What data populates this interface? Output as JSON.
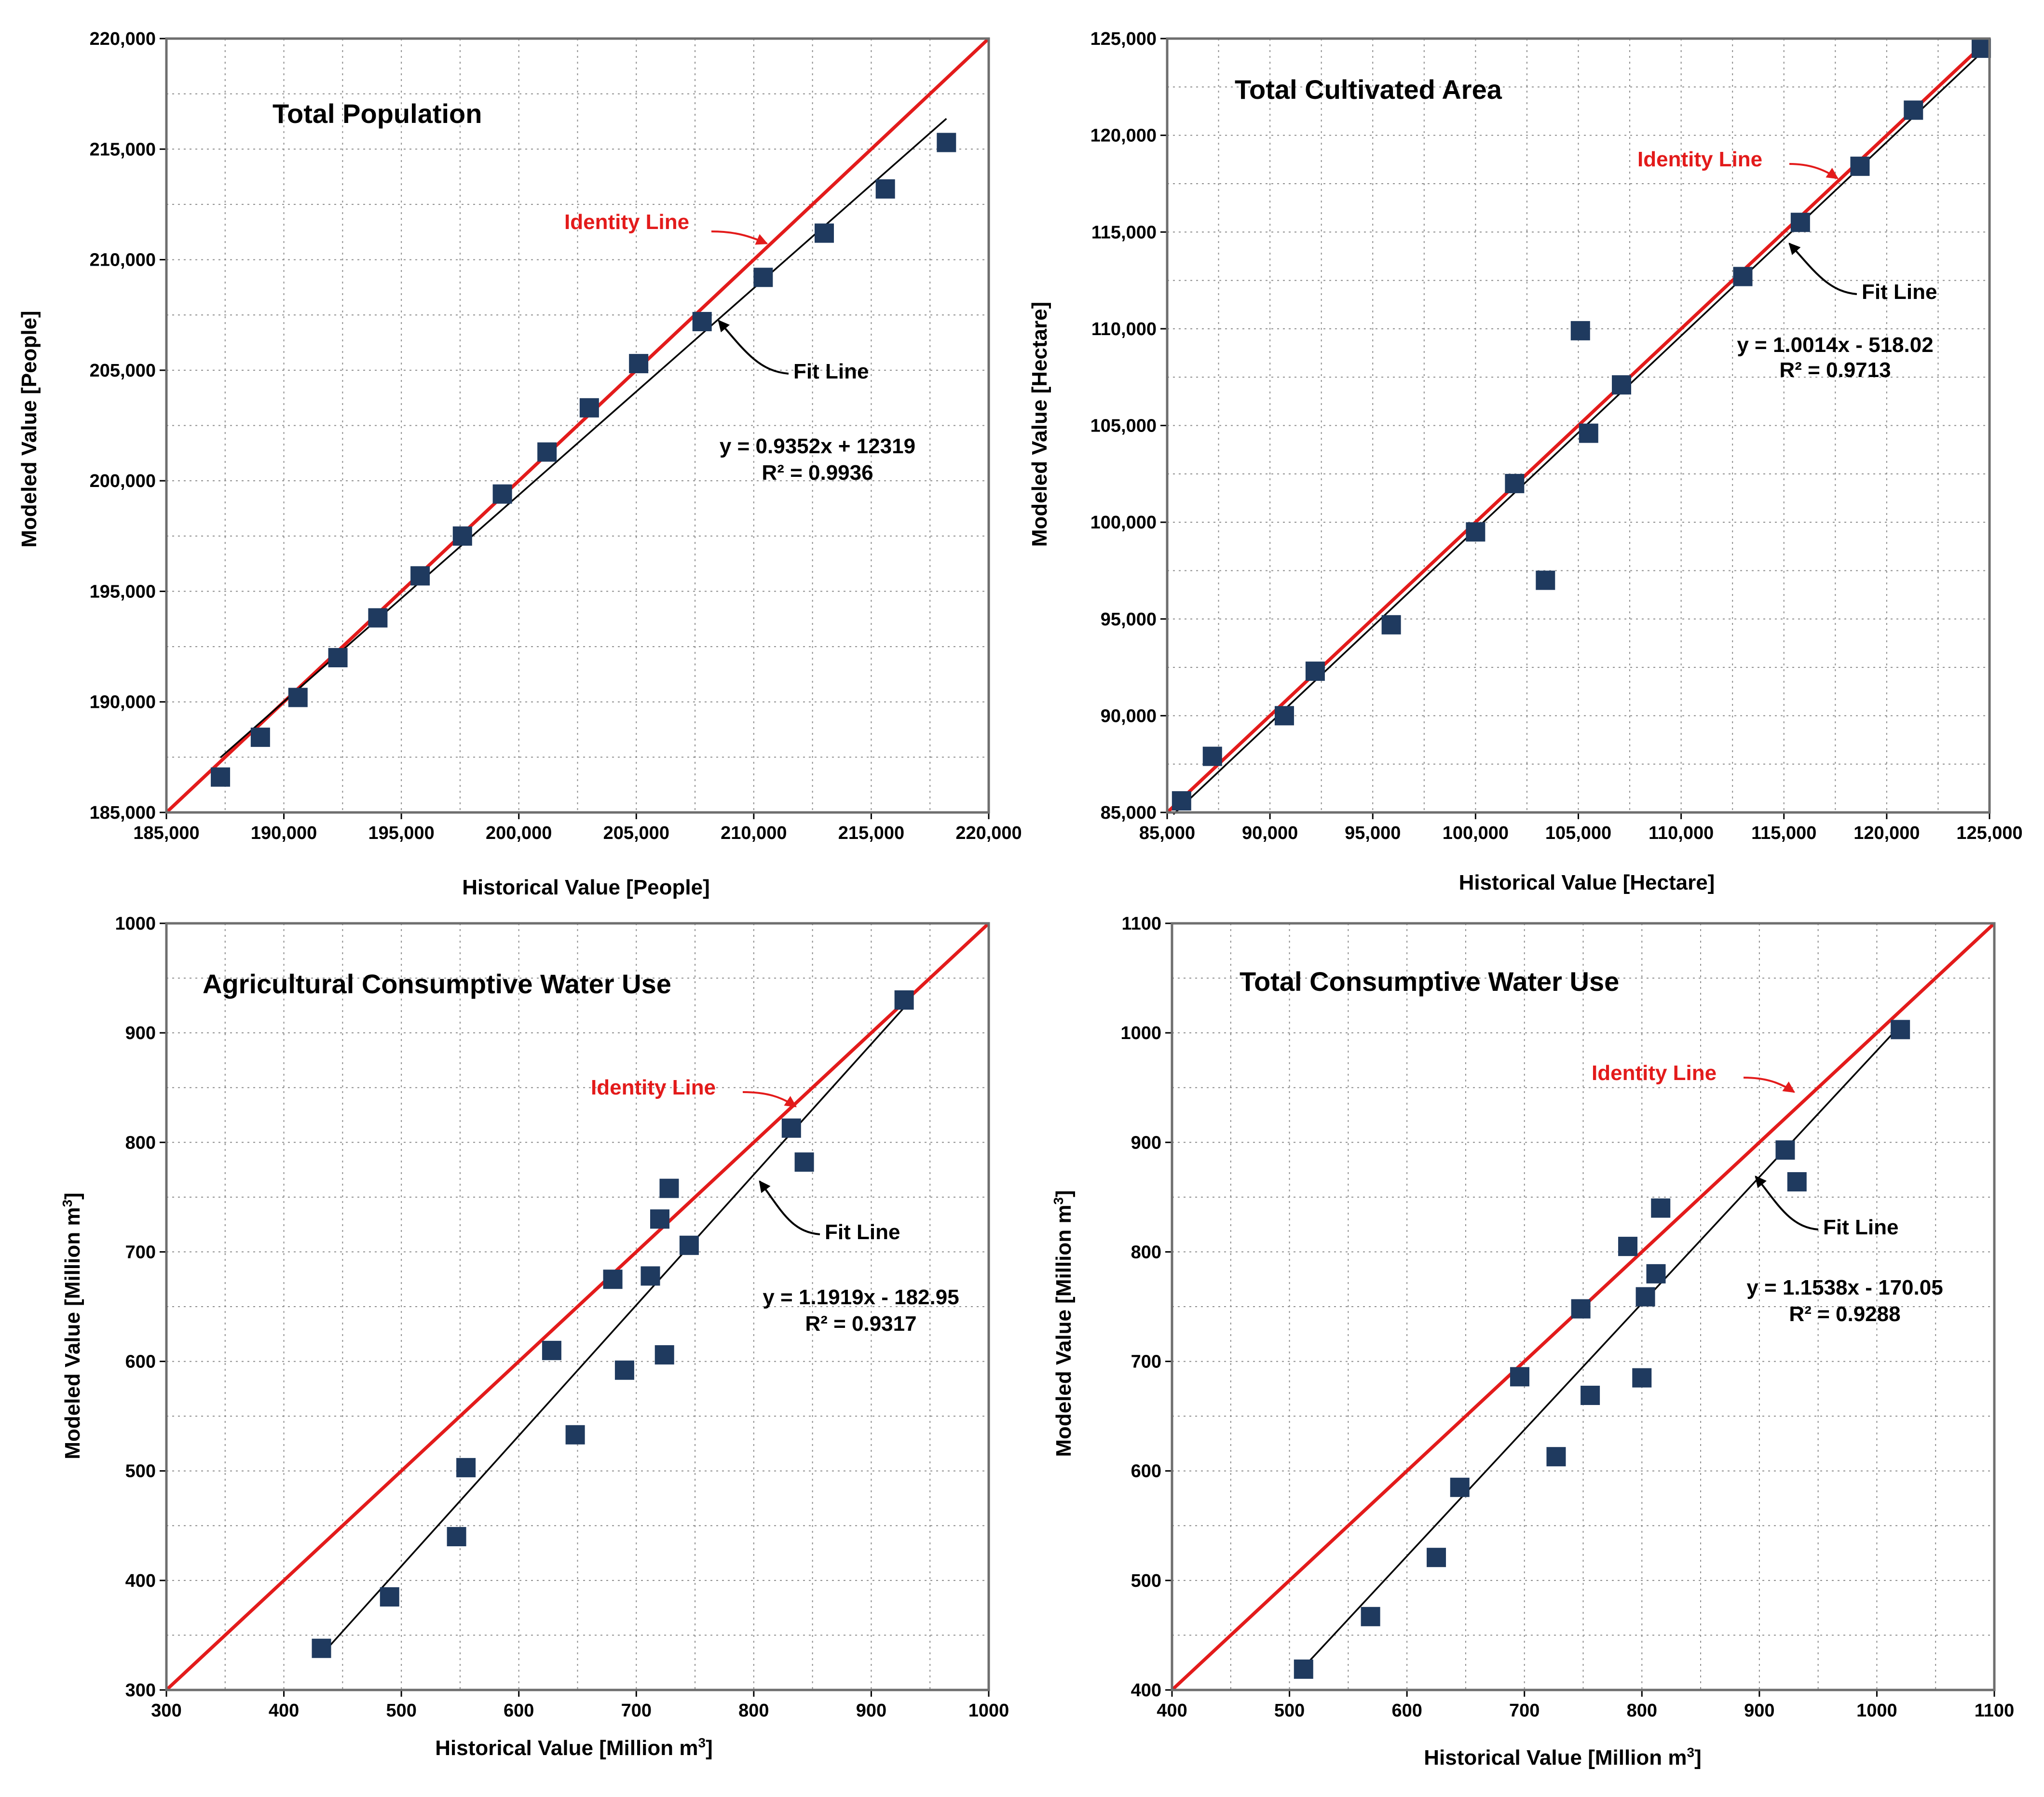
{
  "chart_data": [
    {
      "type": "scatter",
      "title": "Total Population",
      "xlabel": "Historical Value [People]",
      "ylabel": "Modeled Value [People]",
      "xlim": [
        185000,
        220000
      ],
      "ylim": [
        185000,
        220000
      ],
      "ticks": [
        185000,
        190000,
        195000,
        200000,
        205000,
        210000,
        215000,
        220000
      ],
      "tick_labels": [
        "185,000",
        "190,000",
        "195,000",
        "200,000",
        "205,000",
        "210,000",
        "215,000",
        "220,000"
      ],
      "points": [
        [
          187300,
          186600
        ],
        [
          189000,
          188400
        ],
        [
          190600,
          190200
        ],
        [
          192300,
          192000
        ],
        [
          194000,
          193800
        ],
        [
          195800,
          195700
        ],
        [
          197600,
          197500
        ],
        [
          199300,
          199400
        ],
        [
          201200,
          201300
        ],
        [
          203000,
          203300
        ],
        [
          205100,
          205300
        ],
        [
          207800,
          207200
        ],
        [
          210400,
          209200
        ],
        [
          213000,
          211200
        ],
        [
          215600,
          213200
        ],
        [
          218200,
          215300
        ]
      ],
      "fit": {
        "slope": 0.9352,
        "intercept": 12319,
        "x_range": [
          187300,
          218200
        ]
      },
      "identity_label": "Identity Line",
      "fit_label": "Fit Line",
      "equation": "y = 0.9352x + 12319",
      "r2": "R² = 0.9936",
      "colors": {
        "marker": "#1f3a5f",
        "identity": "#e31b1b",
        "fit": "#000000"
      }
    },
    {
      "type": "scatter",
      "title": "Total Cultivated Area",
      "xlabel": "Historical Value [Hectare]",
      "ylabel": "Modeled Value [Hectare]",
      "xlim": [
        85000,
        125000
      ],
      "ylim": [
        85000,
        125000
      ],
      "ticks": [
        85000,
        90000,
        95000,
        100000,
        105000,
        110000,
        115000,
        120000,
        125000
      ],
      "tick_labels": [
        "85,000",
        "90,000",
        "95,000",
        "100,000",
        "105,000",
        "110,000",
        "115,000",
        "120,000",
        "125,000"
      ],
      "points": [
        [
          85700,
          85600
        ],
        [
          87200,
          87900
        ],
        [
          90700,
          90000
        ],
        [
          92200,
          92300
        ],
        [
          95900,
          94700
        ],
        [
          100000,
          99500
        ],
        [
          101900,
          102000
        ],
        [
          103400,
          97000
        ],
        [
          105100,
          109900
        ],
        [
          105500,
          104600
        ],
        [
          107100,
          107100
        ],
        [
          113000,
          112700
        ],
        [
          115800,
          115500
        ],
        [
          118700,
          118400
        ],
        [
          121300,
          121300
        ],
        [
          124600,
          124500
        ]
      ],
      "fit": {
        "slope": 1.0014,
        "intercept": -518.02,
        "x_range": [
          85300,
          124900
        ]
      },
      "identity_label": "Identity Line",
      "fit_label": "Fit Line",
      "equation": "y = 1.0014x - 518.02",
      "r2": "R² = 0.9713",
      "colors": {
        "marker": "#1f3a5f",
        "identity": "#e31b1b",
        "fit": "#000000"
      }
    },
    {
      "type": "scatter",
      "title": "Agricultural  Consumptive Water Use",
      "xlabel": "Historical Value [Million m",
      "ylabel": "Modeled Value [Million m",
      "unit_sup": "3",
      "label_close": "]",
      "xlim": [
        300,
        1000
      ],
      "ylim": [
        300,
        1000
      ],
      "ticks": [
        300,
        400,
        500,
        600,
        700,
        800,
        900,
        1000
      ],
      "tick_labels": [
        "300",
        "400",
        "500",
        "600",
        "700",
        "800",
        "900",
        "1000"
      ],
      "points": [
        [
          432,
          338
        ],
        [
          490,
          385
        ],
        [
          547,
          440
        ],
        [
          555,
          503
        ],
        [
          628,
          610
        ],
        [
          648,
          533
        ],
        [
          680,
          675
        ],
        [
          690,
          592
        ],
        [
          712,
          678
        ],
        [
          720,
          730
        ],
        [
          724,
          606
        ],
        [
          728,
          758
        ],
        [
          745,
          706
        ],
        [
          832,
          813
        ],
        [
          843,
          782
        ],
        [
          928,
          930
        ]
      ],
      "fit": {
        "slope": 1.1919,
        "intercept": -182.95,
        "x_range": [
          432,
          935
        ]
      },
      "identity_label": "Identity Line",
      "fit_label": "Fit Line",
      "equation": "y = 1.1919x - 182.95",
      "r2": "R² = 0.9317",
      "colors": {
        "marker": "#1f3a5f",
        "identity": "#e31b1b",
        "fit": "#000000"
      }
    },
    {
      "type": "scatter",
      "title": "Total Consumptive Water Use",
      "xlabel": "Historical Value [Million m",
      "ylabel": "Modeled Value [Million m",
      "unit_sup": "3",
      "label_close": "]",
      "xlim": [
        400,
        1100
      ],
      "ylim": [
        400,
        1100
      ],
      "ticks": [
        400,
        500,
        600,
        700,
        800,
        900,
        1000,
        1100
      ],
      "tick_labels": [
        "400",
        "500",
        "600",
        "700",
        "800",
        "900",
        "1000",
        "1100"
      ],
      "points": [
        [
          512,
          419
        ],
        [
          569,
          467
        ],
        [
          625,
          521
        ],
        [
          645,
          585
        ],
        [
          696,
          686
        ],
        [
          727,
          613
        ],
        [
          748,
          748
        ],
        [
          756,
          669
        ],
        [
          788,
          805
        ],
        [
          800,
          685
        ],
        [
          803,
          759
        ],
        [
          812,
          780
        ],
        [
          816,
          840
        ],
        [
          922,
          893
        ],
        [
          932,
          864
        ],
        [
          1020,
          1003
        ]
      ],
      "fit": {
        "slope": 1.1538,
        "intercept": -170.05,
        "x_range": [
          512,
          1020
        ]
      },
      "identity_label": "Identity Line",
      "fit_label": "Fit Line",
      "equation": "y = 1.1538x - 170.05",
      "r2": "R² = 0.9288",
      "colors": {
        "marker": "#1f3a5f",
        "identity": "#e31b1b",
        "fit": "#000000"
      }
    }
  ]
}
